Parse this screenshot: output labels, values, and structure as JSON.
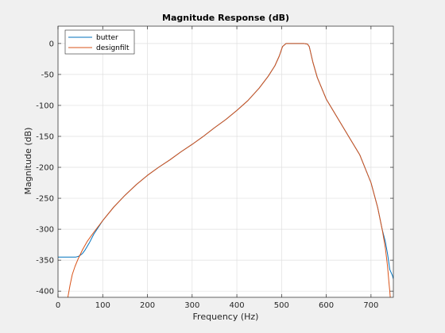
{
  "chart_data": {
    "type": "line",
    "title": "Magnitude Response (dB)",
    "xlabel": "Frequency (Hz)",
    "ylabel": "Magnitude (dB)",
    "xlim": [
      0,
      750
    ],
    "ylim": [
      -410,
      28
    ],
    "xticks": [
      0,
      100,
      200,
      300,
      400,
      500,
      600,
      700
    ],
    "yticks": [
      0,
      -50,
      -100,
      -150,
      -200,
      -250,
      -300,
      -350,
      -400
    ],
    "grid": true,
    "legend_position": "top-left",
    "series": [
      {
        "name": "butter",
        "color": "#0072BD",
        "x": [
          0,
          40,
          45,
          50,
          55,
          60,
          70,
          80,
          100,
          125,
          150,
          175,
          200,
          225,
          250,
          275,
          300,
          325,
          350,
          375,
          400,
          425,
          450,
          470,
          485,
          495,
          502,
          510,
          530,
          550,
          558,
          562,
          570,
          580,
          600,
          625,
          650,
          675,
          700,
          715,
          725,
          732,
          737,
          740,
          742,
          745,
          748,
          750
        ],
        "y": [
          -345,
          -345,
          -344,
          -342,
          -339,
          -334,
          -322,
          -308,
          -286,
          -264,
          -245,
          -228,
          -213,
          -200,
          -188,
          -175,
          -163,
          -150,
          -136,
          -123,
          -108,
          -92,
          -72,
          -53,
          -36,
          -20,
          -5,
          0,
          0,
          0,
          -1,
          -5,
          -30,
          -55,
          -90,
          -120,
          -150,
          -180,
          -225,
          -265,
          -300,
          -320,
          -340,
          -355,
          -365,
          -370,
          -375,
          -380
        ]
      },
      {
        "name": "designfilt",
        "color": "#D95319",
        "x": [
          0,
          22,
          27,
          32,
          38,
          45,
          55,
          65,
          80,
          100,
          125,
          150,
          175,
          200,
          225,
          250,
          275,
          300,
          325,
          350,
          375,
          400,
          425,
          450,
          470,
          485,
          495,
          502,
          510,
          530,
          550,
          558,
          562,
          570,
          580,
          600,
          625,
          650,
          675,
          700,
          715,
          725,
          732,
          737,
          740,
          742,
          743
        ],
        "y": [
          -460,
          -410,
          -390,
          -373,
          -360,
          -348,
          -333,
          -320,
          -305,
          -286,
          -264,
          -245,
          -228,
          -213,
          -200,
          -188,
          -175,
          -163,
          -150,
          -136,
          -123,
          -108,
          -92,
          -72,
          -53,
          -36,
          -20,
          -5,
          0,
          0,
          0,
          -1,
          -5,
          -30,
          -55,
          -90,
          -120,
          -150,
          -180,
          -225,
          -265,
          -300,
          -330,
          -360,
          -385,
          -400,
          -410
        ]
      }
    ]
  }
}
